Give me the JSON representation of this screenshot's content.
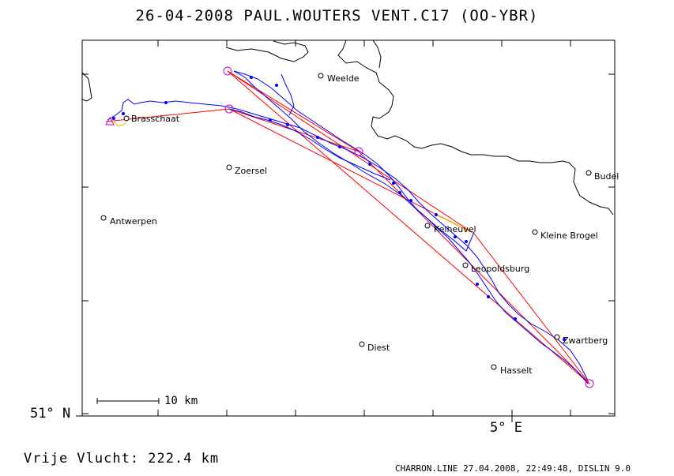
{
  "title": "26-04-2008   PAUL.WOUTERS   VENT.C17 (OO-YBR)",
  "axes": {
    "lat_label": "51° N",
    "lon_label": "5° E"
  },
  "scale_bar": {
    "label": "10 km"
  },
  "places": [
    {
      "name": "Weelde"
    },
    {
      "name": "Brasschaat"
    },
    {
      "name": "Zoersel"
    },
    {
      "name": "Budel"
    },
    {
      "name": "Antwerpen"
    },
    {
      "name": "Kleine Brogel"
    },
    {
      "name": "Keiheuvel"
    },
    {
      "name": "Leopoldsburg"
    },
    {
      "name": "Zwartberg"
    },
    {
      "name": "Diest"
    },
    {
      "name": "Hasselt"
    }
  ],
  "flight": {
    "distance_label": "Vrije Vlucht:  222.4 km"
  },
  "footer": {
    "credit": "CHARRON.LINE 27.04.2008, 22:49:48, DISLIN 9.0"
  },
  "colors": {
    "track": "#0000ff",
    "task": "#ff0000",
    "turnpoint": "#cc00cc",
    "border": "#000000"
  }
}
